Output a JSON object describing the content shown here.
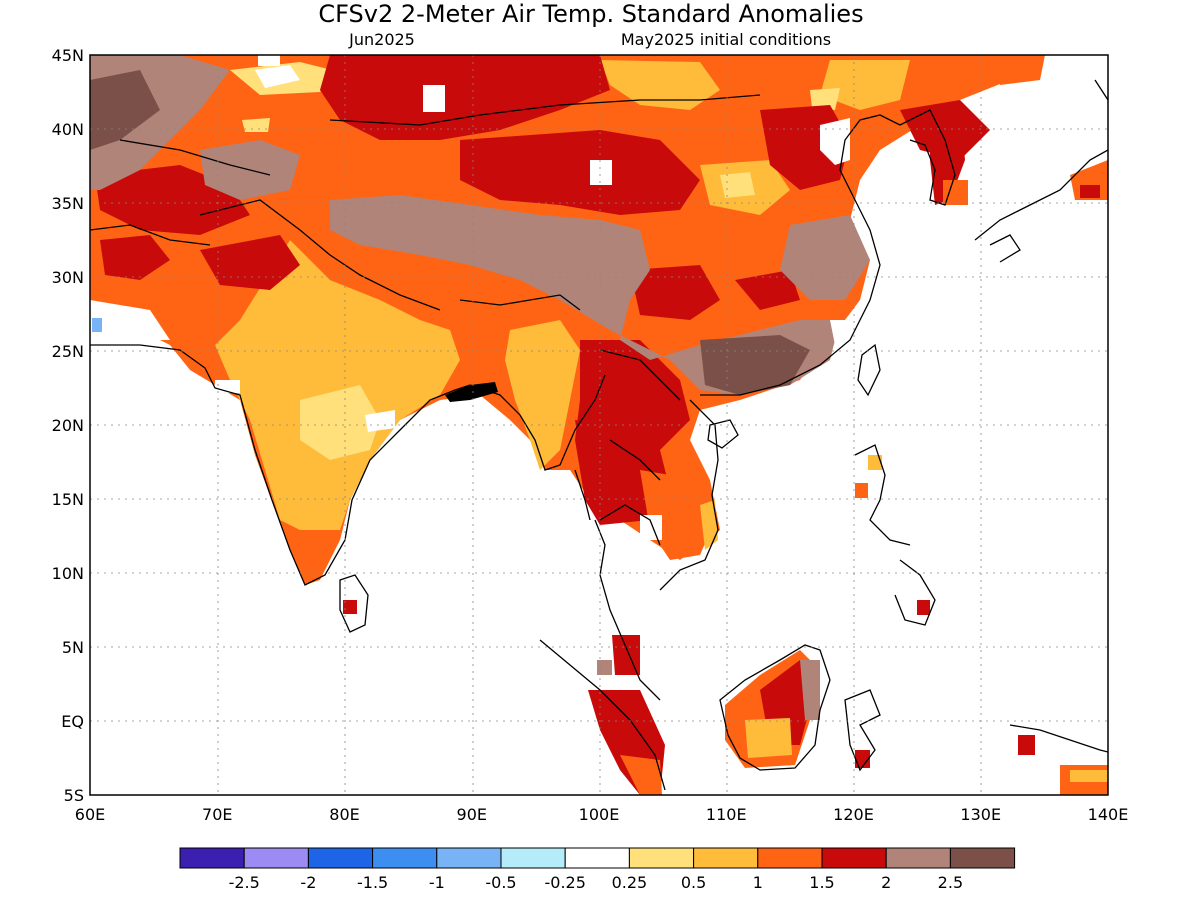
{
  "title": "CFSv2 2-Meter Air Temp. Standard Anomalies",
  "subtitle_left": "Jun2025",
  "subtitle_right": "May2025 initial conditions",
  "lat_labels": [
    "45N",
    "40N",
    "35N",
    "30N",
    "25N",
    "20N",
    "15N",
    "10N",
    "5N",
    "EQ",
    "5S"
  ],
  "lon_labels": [
    "60E",
    "70E",
    "80E",
    "90E",
    "100E",
    "110E",
    "120E",
    "130E",
    "140E"
  ],
  "colorbar": {
    "colors": [
      "#3a1fb0",
      "#9b8bf2",
      "#1e64e6",
      "#3c8ff0",
      "#78b4f5",
      "#b4ecfa",
      "#ffffff",
      "#ffe07a",
      "#ffbb3a",
      "#ff6414",
      "#c80a0a",
      "#b08478",
      "#7a5048"
    ],
    "labels": [
      "-2.5",
      "-2",
      "-1.5",
      "-1",
      "-0.5",
      "-0.25",
      "0.25",
      "0.5",
      "1",
      "1.5",
      "2",
      "2.5"
    ]
  }
}
